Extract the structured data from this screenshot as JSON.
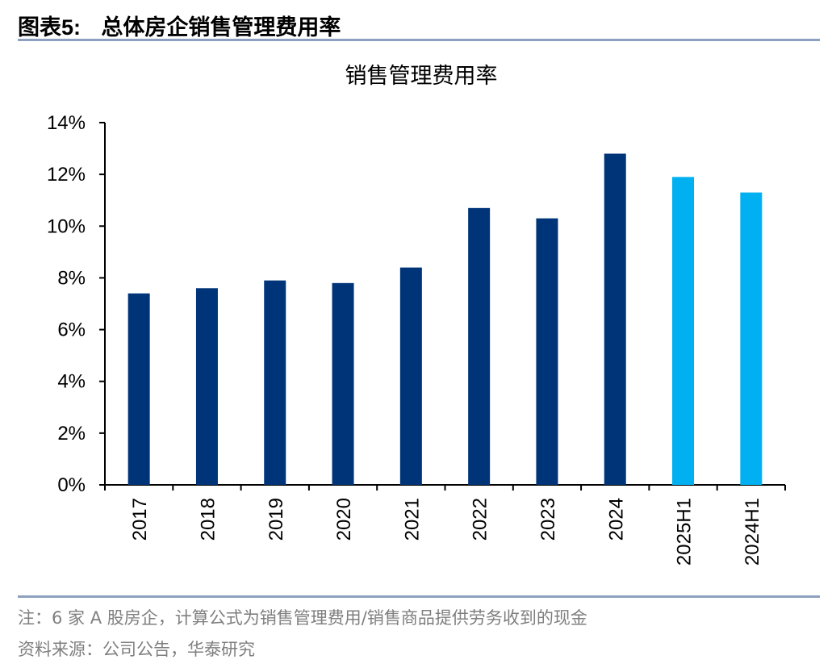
{
  "figure": {
    "label": "图表5:",
    "title": "总体房企销售管理费用率"
  },
  "chart_data": {
    "type": "bar",
    "title": "销售管理费用率",
    "xlabel": "",
    "ylabel": "",
    "categories": [
      "2017",
      "2018",
      "2019",
      "2020",
      "2021",
      "2022",
      "2023",
      "2024",
      "2025H1",
      "2024H1"
    ],
    "values": [
      7.4,
      7.6,
      7.9,
      7.8,
      8.4,
      10.7,
      10.3,
      12.8,
      11.9,
      11.3
    ],
    "bar_colors": [
      "#003478",
      "#003478",
      "#003478",
      "#003478",
      "#003478",
      "#003478",
      "#003478",
      "#003478",
      "#00b0f0",
      "#00b0f0"
    ],
    "ylim": [
      0,
      14
    ],
    "yticks": [
      "0%",
      "2%",
      "4%",
      "6%",
      "8%",
      "10%",
      "12%",
      "14%"
    ],
    "grid": false,
    "legend": "none"
  },
  "footer": {
    "note": "注：6 家 A 股房企，计算公式为销售管理费用/销售商品提供劳务收到的现金",
    "source": "资料来源：公司公告，华泰研究"
  }
}
